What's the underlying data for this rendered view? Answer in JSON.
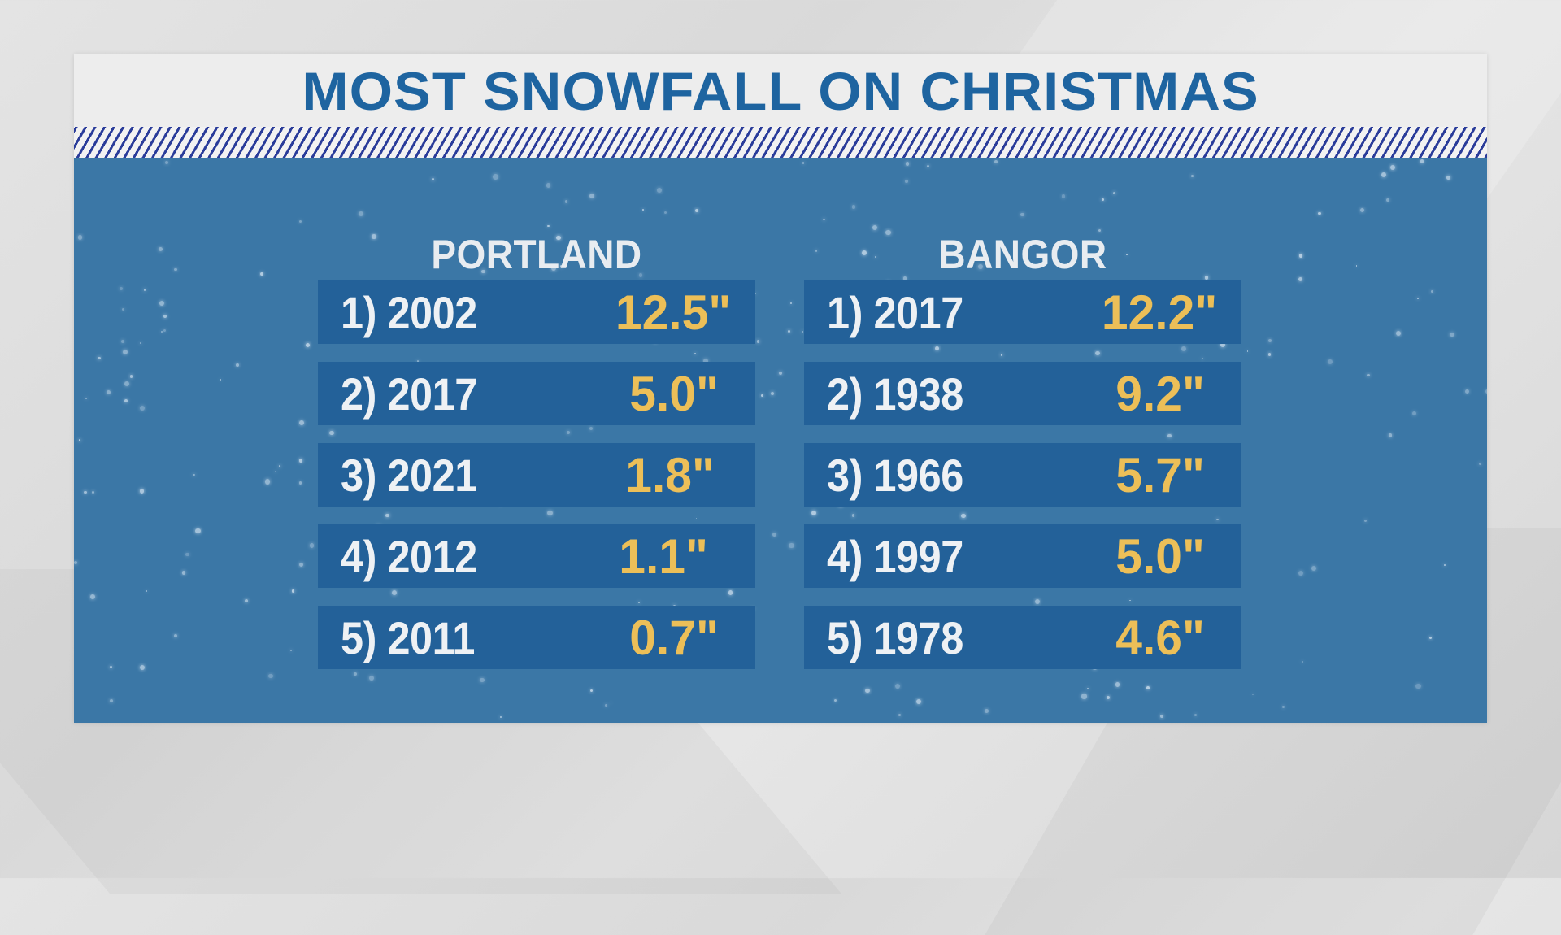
{
  "title": "MOST SNOWFALL ON CHRISTMAS",
  "columns": [
    {
      "city": "PORTLAND",
      "rows": [
        {
          "label": "1) 2002",
          "value": "12.5\""
        },
        {
          "label": "2) 2017",
          "value": "5.0\""
        },
        {
          "label": "3) 2021",
          "value": "1.8\""
        },
        {
          "label": "4) 2012",
          "value": "1.1\""
        },
        {
          "label": "5) 2011",
          "value": "0.7\""
        }
      ]
    },
    {
      "city": "BANGOR",
      "rows": [
        {
          "label": "1) 2017",
          "value": "12.2\""
        },
        {
          "label": "2) 1938",
          "value": "9.2\""
        },
        {
          "label": "3) 1966",
          "value": "5.7\""
        },
        {
          "label": "4) 1997",
          "value": "5.0\""
        },
        {
          "label": "5) 1978",
          "value": "4.6\""
        }
      ]
    }
  ],
  "colors": {
    "title": "#1e64a0",
    "panel_blue": "#3b77a6",
    "row_blue": "#236199",
    "value_gold": "#ecbf58",
    "label_white": "#eef1f4",
    "hatch": "#2a3c9a"
  },
  "chart_data": {
    "type": "table",
    "title": "MOST SNOWFALL ON CHRISTMAS",
    "unit": "inches",
    "series": [
      {
        "name": "PORTLAND",
        "ranks": [
          1,
          2,
          3,
          4,
          5
        ],
        "years": [
          2002,
          2017,
          2021,
          2012,
          2011
        ],
        "values": [
          12.5,
          5.0,
          1.8,
          1.1,
          0.7
        ]
      },
      {
        "name": "BANGOR",
        "ranks": [
          1,
          2,
          3,
          4,
          5
        ],
        "years": [
          2017,
          1938,
          1966,
          1997,
          1978
        ],
        "values": [
          12.2,
          9.2,
          5.7,
          5.0,
          4.6
        ]
      }
    ]
  }
}
